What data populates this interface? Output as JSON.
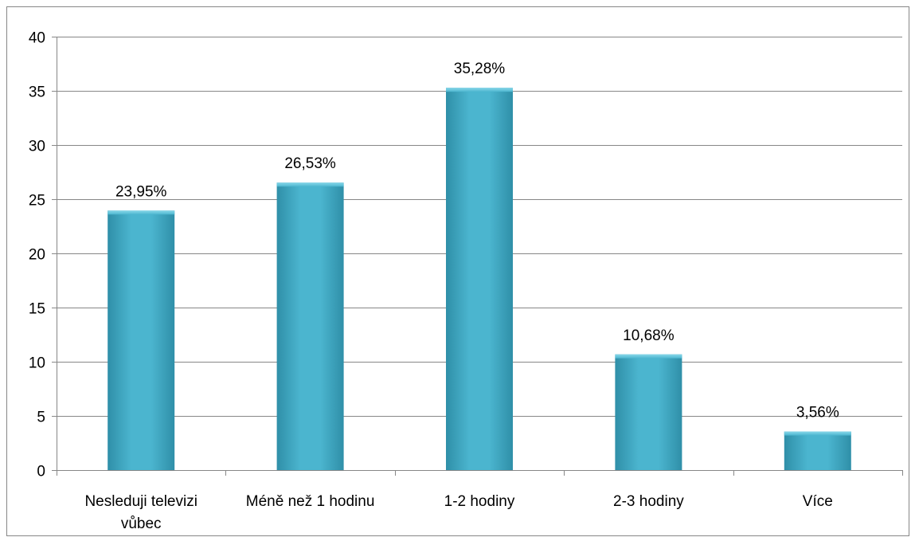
{
  "colors": {
    "bar": "#4bb5cf",
    "bar_light": "#8ad8ea",
    "bar_dark": "#2f8fa8",
    "gridline": "#878787",
    "axis": "#878787",
    "frame": "#878787"
  },
  "chart_data": {
    "type": "bar",
    "title": "",
    "xlabel": "",
    "ylabel": "",
    "ylim": [
      0,
      40
    ],
    "yticks": [
      0,
      5,
      10,
      15,
      20,
      25,
      30,
      35,
      40
    ],
    "grid": true,
    "legend": "none",
    "categories": [
      [
        "Nesleduji televizi",
        "vůbec"
      ],
      [
        "Méně než 1 hodinu"
      ],
      [
        "1-2 hodiny"
      ],
      [
        "2-3 hodiny"
      ],
      [
        "Více"
      ]
    ],
    "values": [
      23.95,
      26.53,
      35.28,
      10.68,
      3.56
    ],
    "data_labels": [
      "23,95%",
      "26,53%",
      "35,28%",
      "10,68%",
      "3,56%"
    ]
  }
}
